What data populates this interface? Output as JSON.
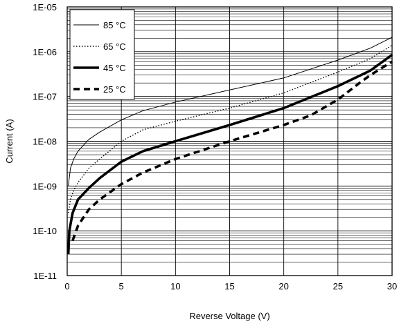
{
  "chart_data": {
    "type": "line",
    "title": "",
    "xlabel": "Reverse Voltage (V)",
    "ylabel": "Current (A)",
    "xlim": [
      0,
      30
    ],
    "ylim": [
      1e-11,
      1e-05
    ],
    "yscale": "log",
    "grid": true,
    "legend": "top-left",
    "x_ticks": [
      "0",
      "5",
      "10",
      "15",
      "20",
      "25",
      "30"
    ],
    "y_ticks": [
      "1E-11",
      "1E-10",
      "1E-09",
      "1E-08",
      "1E-07",
      "1E-06",
      "1E-05"
    ],
    "series": [
      {
        "name": "85 °C",
        "line_style": "thin-solid",
        "points": [
          [
            0.1,
            1e-09
          ],
          [
            0.3,
            2.5e-09
          ],
          [
            0.6,
            4e-09
          ],
          [
            1,
            6e-09
          ],
          [
            2,
            1.1e-08
          ],
          [
            3,
            1.6e-08
          ],
          [
            5,
            3e-08
          ],
          [
            7,
            4.8e-08
          ],
          [
            10,
            7.5e-08
          ],
          [
            15,
            1.4e-07
          ],
          [
            20,
            2.6e-07
          ],
          [
            25,
            6.5e-07
          ],
          [
            28,
            1.2e-06
          ],
          [
            30,
            2.1e-06
          ]
        ]
      },
      {
        "name": "65 °C",
        "line_style": "dotted",
        "points": [
          [
            0.1,
            2.5e-10
          ],
          [
            0.3,
            5e-10
          ],
          [
            0.6,
            8e-10
          ],
          [
            1,
            1.2e-09
          ],
          [
            2,
            2.5e-09
          ],
          [
            3,
            4e-09
          ],
          [
            5,
            1e-08
          ],
          [
            7,
            1.8e-08
          ],
          [
            10,
            2.8e-08
          ],
          [
            15,
            5.5e-08
          ],
          [
            20,
            1.2e-07
          ],
          [
            25,
            3.5e-07
          ],
          [
            28,
            7e-07
          ],
          [
            30,
            1.4e-06
          ]
        ]
      },
      {
        "name": "45 °C",
        "line_style": "thick-solid",
        "points": [
          [
            0.1,
            3e-11
          ],
          [
            0.2,
            1e-10
          ],
          [
            0.5,
            2.5e-10
          ],
          [
            1,
            5e-10
          ],
          [
            2,
            9e-10
          ],
          [
            3,
            1.5e-09
          ],
          [
            5,
            3.5e-09
          ],
          [
            7,
            6e-09
          ],
          [
            10,
            1e-08
          ],
          [
            15,
            2.3e-08
          ],
          [
            20,
            5.5e-08
          ],
          [
            25,
            1.7e-07
          ],
          [
            28,
            3.8e-07
          ],
          [
            30,
            8.5e-07
          ]
        ]
      },
      {
        "name": "25 °C",
        "line_style": "thick-dashed",
        "points": [
          [
            0.5,
            6e-11
          ],
          [
            1,
            1.3e-10
          ],
          [
            2,
            3e-10
          ],
          [
            3,
            5e-10
          ],
          [
            5,
            1.1e-09
          ],
          [
            7,
            2e-09
          ],
          [
            10,
            4e-09
          ],
          [
            15,
            1e-08
          ],
          [
            20,
            2.3e-08
          ],
          [
            22.5,
            3.8e-08
          ],
          [
            25,
            8.5e-08
          ],
          [
            27,
            2e-07
          ],
          [
            28,
            3e-07
          ],
          [
            30,
            6e-07
          ]
        ]
      }
    ]
  }
}
